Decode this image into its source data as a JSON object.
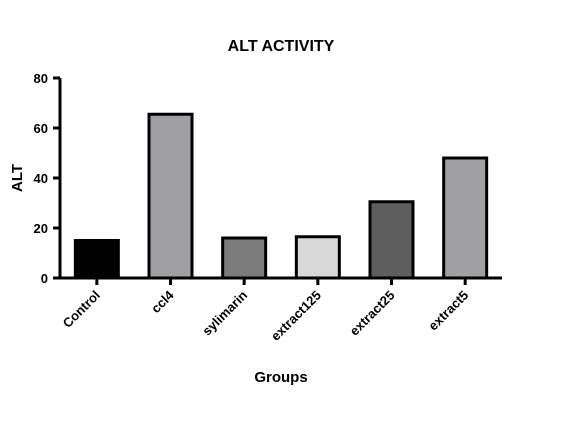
{
  "chart_data": {
    "type": "bar",
    "title": "ALT ACTIVITY",
    "xlabel": "Groups",
    "ylabel": "ALT",
    "ylim": [
      0,
      80
    ],
    "yticks": [
      0,
      20,
      40,
      60,
      80
    ],
    "grid": false,
    "categories": [
      "Control",
      "ccl4",
      "sylimarin",
      "extract125",
      "extract25",
      "extract5"
    ],
    "values": [
      15,
      65.5,
      16,
      16.5,
      30.5,
      48
    ],
    "colors": [
      "#000000",
      "#a09fa4",
      "#7b7b7b",
      "#d8d8d8",
      "#5e5e5e",
      "#a09fa4"
    ]
  }
}
